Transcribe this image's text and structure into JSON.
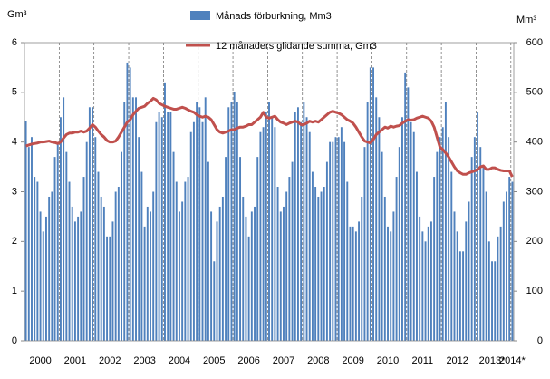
{
  "chart_data": {
    "type": "bar",
    "y_label": "Gm³",
    "y2_label": "Mm³",
    "ylim": [
      0,
      6
    ],
    "yticks": [
      0,
      1,
      2,
      3,
      4,
      5,
      6
    ],
    "y2lim": [
      0,
      600
    ],
    "y2ticks": [
      0,
      100,
      200,
      300,
      400,
      500,
      600
    ],
    "categories": [
      null,
      null,
      null,
      null,
      null,
      "2000",
      null,
      null,
      null,
      null,
      null,
      null,
      null,
      null,
      null,
      null,
      null,
      "2001",
      null,
      null,
      null,
      null,
      null,
      null,
      null,
      null,
      null,
      null,
      null,
      "2002",
      null,
      null,
      null,
      null,
      null,
      null,
      null,
      null,
      null,
      null,
      null,
      "2003",
      null,
      null,
      null,
      null,
      null,
      null,
      null,
      null,
      null,
      null,
      null,
      "2004",
      null,
      null,
      null,
      null,
      null,
      null,
      null,
      null,
      null,
      null,
      null,
      "2005",
      null,
      null,
      null,
      null,
      null,
      null,
      null,
      null,
      null,
      null,
      null,
      "2006",
      null,
      null,
      null,
      null,
      null,
      null,
      null,
      null,
      null,
      null,
      null,
      "2007",
      null,
      null,
      null,
      null,
      null,
      null,
      null,
      null,
      null,
      null,
      null,
      "2008",
      null,
      null,
      null,
      null,
      null,
      null,
      null,
      null,
      null,
      null,
      null,
      "2009",
      null,
      null,
      null,
      null,
      null,
      null,
      null,
      null,
      null,
      null,
      null,
      "2010",
      null,
      null,
      null,
      null,
      null,
      null,
      null,
      null,
      null,
      null,
      null,
      "2011",
      null,
      null,
      null,
      null,
      null,
      null,
      null,
      null,
      null,
      null,
      null,
      "2012",
      null,
      null,
      null,
      null,
      null,
      null,
      null,
      null,
      null,
      null,
      null,
      "2013*",
      null,
      null,
      null,
      null,
      null,
      null,
      "2014*"
    ],
    "series": [
      {
        "name": "Månads förburkning, Mm3",
        "type": "bar",
        "axis": "y2",
        "color": "#4f81bd",
        "values": [
          443,
          390,
          410,
          330,
          320,
          260,
          220,
          250,
          290,
          300,
          370,
          400,
          450,
          490,
          380,
          320,
          270,
          240,
          250,
          260,
          330,
          400,
          470,
          470,
          410,
          340,
          290,
          270,
          210,
          210,
          240,
          300,
          310,
          380,
          480,
          560,
          550,
          490,
          490,
          410,
          340,
          230,
          270,
          260,
          300,
          440,
          460,
          450,
          520,
          460,
          460,
          380,
          320,
          260,
          280,
          320,
          330,
          420,
          440,
          480,
          470,
          440,
          490,
          360,
          260,
          160,
          240,
          270,
          290,
          370,
          470,
          480,
          500,
          480,
          370,
          290,
          250,
          210,
          260,
          270,
          370,
          420,
          430,
          460,
          480,
          450,
          430,
          310,
          260,
          270,
          300,
          330,
          360,
          460,
          470,
          440,
          480,
          450,
          420,
          340,
          310,
          290,
          300,
          310,
          360,
          400,
          400,
          410,
          410,
          430,
          400,
          320,
          230,
          230,
          220,
          240,
          290,
          390,
          480,
          550,
          550,
          490,
          450,
          380,
          290,
          230,
          220,
          260,
          330,
          390,
          450,
          540,
          510,
          440,
          420,
          340,
          250,
          220,
          200,
          230,
          240,
          330,
          380,
          410,
          430,
          480,
          410,
          340,
          260,
          220,
          180,
          180,
          240,
          280,
          370,
          410,
          460,
          390,
          350,
          300,
          200,
          160,
          160,
          210,
          230,
          280,
          300,
          330,
          320
        ]
      },
      {
        "name": "12 månaders glidande summa, Gm3",
        "type": "line",
        "axis": "y",
        "color": "#c0504d",
        "values": [
          3.92,
          3.94,
          3.96,
          3.97,
          3.98,
          4.0,
          4.0,
          4.01,
          4.02,
          4.0,
          3.99,
          3.97,
          4.0,
          4.08,
          4.15,
          4.18,
          4.18,
          4.2,
          4.2,
          4.22,
          4.2,
          4.22,
          4.28,
          4.35,
          4.3,
          4.22,
          4.15,
          4.1,
          4.03,
          4.0,
          4.0,
          4.02,
          4.1,
          4.2,
          4.3,
          4.4,
          4.45,
          4.55,
          4.62,
          4.68,
          4.7,
          4.72,
          4.78,
          4.82,
          4.88,
          4.85,
          4.78,
          4.75,
          4.72,
          4.7,
          4.68,
          4.66,
          4.66,
          4.68,
          4.7,
          4.68,
          4.65,
          4.62,
          4.6,
          4.55,
          4.52,
          4.5,
          4.52,
          4.5,
          4.45,
          4.35,
          4.25,
          4.2,
          4.18,
          4.2,
          4.22,
          4.25,
          4.25,
          4.28,
          4.3,
          4.3,
          4.32,
          4.35,
          4.35,
          4.4,
          4.45,
          4.5,
          4.6,
          4.5,
          4.48,
          4.5,
          4.52,
          4.45,
          4.4,
          4.38,
          4.35,
          4.38,
          4.4,
          4.42,
          4.4,
          4.35,
          4.35,
          4.38,
          4.42,
          4.4,
          4.42,
          4.4,
          4.45,
          4.5,
          4.55,
          4.6,
          4.62,
          4.6,
          4.58,
          4.55,
          4.5,
          4.45,
          4.42,
          4.38,
          4.3,
          4.2,
          4.1,
          4.02,
          4.0,
          3.98,
          4.05,
          4.15,
          4.2,
          4.25,
          4.3,
          4.28,
          4.32,
          4.3,
          4.32,
          4.33,
          4.38,
          4.42,
          4.45,
          4.44,
          4.45,
          4.48,
          4.5,
          4.52,
          4.5,
          4.48,
          4.42,
          4.3,
          4.1,
          3.9,
          3.85,
          3.78,
          3.7,
          3.6,
          3.5,
          3.42,
          3.38,
          3.35,
          3.35,
          3.38,
          3.4,
          3.42,
          3.45,
          3.5,
          3.52,
          3.45,
          3.45,
          3.48,
          3.48,
          3.45,
          3.43,
          3.42,
          3.42,
          3.42,
          3.3
        ]
      }
    ]
  }
}
